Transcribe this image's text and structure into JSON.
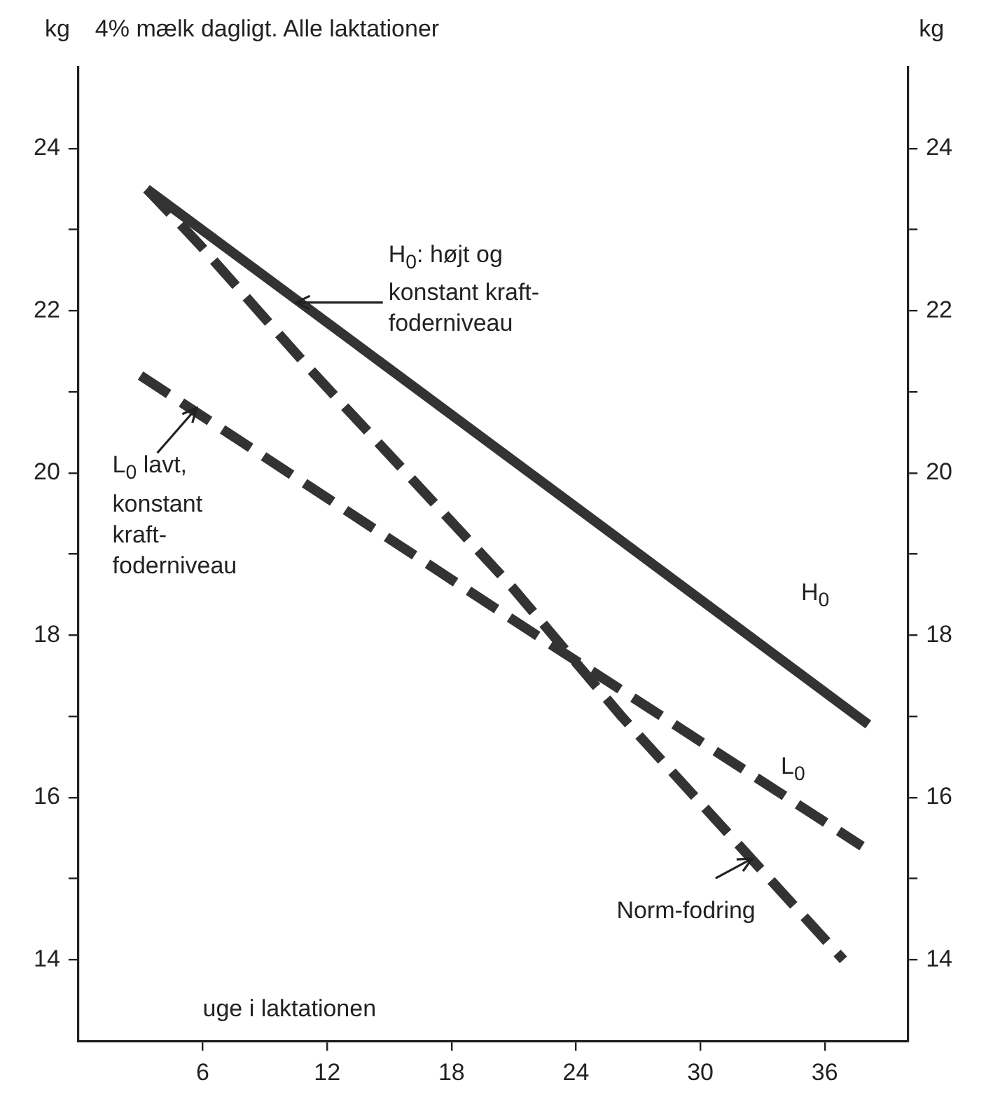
{
  "chart_data": {
    "type": "line",
    "title": "4% mælk dagligt.  Alle laktationer",
    "xlabel": "uge i laktationen",
    "ylabel": "kg",
    "y2label": "kg",
    "xlim": [
      0,
      40
    ],
    "xticks": [
      6,
      12,
      18,
      24,
      30,
      36
    ],
    "ylim": [
      13,
      25
    ],
    "yticks": [
      14,
      {
        "value": 15,
        "label": null
      },
      16,
      {
        "value": 17,
        "label": null
      },
      18,
      {
        "value": 19,
        "label": null
      },
      20,
      {
        "value": 21,
        "label": null
      },
      22,
      {
        "value": 23,
        "label": null
      },
      24
    ],
    "y2lim": [
      13,
      25
    ],
    "y2ticks": [
      14,
      {
        "value": 15,
        "label": null
      },
      16,
      {
        "value": 17,
        "label": null
      },
      18,
      {
        "value": 19,
        "label": null
      },
      20,
      {
        "value": 21,
        "label": null
      },
      22,
      {
        "value": 23,
        "label": null
      },
      24
    ],
    "grid": false,
    "legend": false,
    "marker": "none",
    "series": [
      {
        "name": "H$_{0}$",
        "color": "#333333",
        "line_style": "solid",
        "x": [
          3.3,
          14.4,
          26,
          38.1
        ],
        "values": [
          23.5,
          21.4,
          19.2,
          16.9
        ]
      },
      {
        "name": "Norm-fodring",
        "color": "#333333",
        "line_style": "dashed",
        "x": [
          3.3,
          4.8,
          5.9,
          11.1,
          20.9,
          26.2,
          36.9
        ],
        "values": [
          23.5,
          23.1,
          22.8,
          21.3,
          18.6,
          17.0,
          14.0
        ]
      },
      {
        "name": "L$_{0}$",
        "color": "#333333",
        "line_style": "dashed",
        "x": [
          3.0,
          20.9,
          37.8
        ],
        "values": [
          21.2,
          18.2,
          15.4
        ]
      }
    ],
    "annotations": [
      {
        "text": "H$_{0}$: højt og konstant kraft-foderniveau",
        "x": 10.5,
        "y": 22.1
      },
      {
        "text": "L$_{0}$ lavt, konstant kraft-foderniveau",
        "x": 5.7,
        "y": 20.8
      }
    ]
  }
}
